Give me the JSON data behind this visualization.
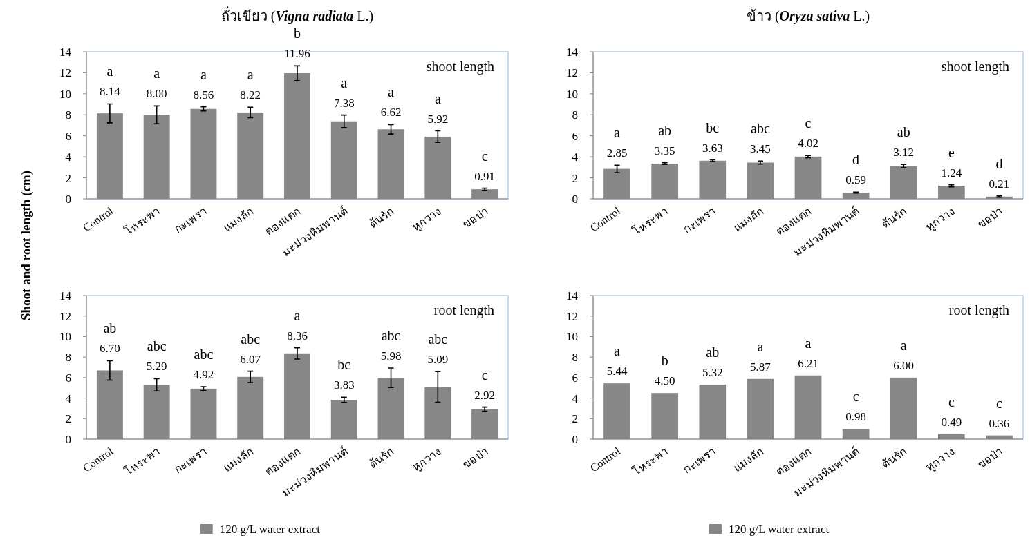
{
  "chart_data": [
    {
      "type": "bar",
      "title": "ถั่วเขียว (*Vigna radiata* L.)",
      "ylabel": "Shoot  and root length (cm)",
      "categories": [
        "Control",
        "โหระพา",
        "กะเพรา",
        "แมงลัก",
        "ตองแตก",
        "มะม่วงหิมพานต์",
        "ต้นรัก",
        "หูกวาง",
        "ขอป่า"
      ],
      "ylim": [
        0,
        14
      ],
      "yticks": [
        0,
        2,
        4,
        6,
        8,
        10,
        12,
        14
      ],
      "series": [
        {
          "color": "#878787",
          "values": [
            8.14,
            8.0,
            8.56,
            8.22,
            11.96,
            7.38,
            6.62,
            5.92,
            0.91
          ],
          "errors": [
            0.9,
            0.85,
            0.2,
            0.5,
            0.7,
            0.6,
            0.45,
            0.55,
            0.1
          ],
          "value_labels": [
            "8.14",
            "8.00",
            "8.56",
            "8.22",
            "11.96",
            "7.38",
            "6.62",
            "5.92",
            "0.91"
          ]
        }
      ],
      "annotations": [
        "shoot length",
        "a",
        "a",
        "a",
        "a",
        "b",
        "a",
        "a",
        "a",
        "c"
      ]
    },
    {
      "type": "bar",
      "title": "ข้าว  (*Oryza sativa* L.)",
      "categories": [
        "Control",
        "โหระพา",
        "กะเพรา",
        "แมงลัก",
        "ตองแตก",
        "มะม่วงหิมพานต์",
        "ต้นรัก",
        "หูกวาง",
        "ขอป่า"
      ],
      "ylim": [
        0,
        14
      ],
      "yticks": [
        0,
        2,
        4,
        6,
        8,
        10,
        12,
        14
      ],
      "series": [
        {
          "color": "#878787",
          "values": [
            2.85,
            3.35,
            3.63,
            3.45,
            4.02,
            0.59,
            3.12,
            1.24,
            0.21
          ],
          "errors": [
            0.35,
            0.08,
            0.08,
            0.15,
            0.1,
            0.04,
            0.15,
            0.1,
            0.06
          ],
          "value_labels": [
            "2.85",
            "3.35",
            "3.63",
            "3.45",
            "4.02",
            "0.59",
            "3.12",
            "1.24",
            "0.21"
          ]
        }
      ],
      "annotations": [
        "shoot length",
        "a",
        "ab",
        "bc",
        "abc",
        "c",
        "d",
        "ab",
        "e",
        "d"
      ]
    },
    {
      "type": "bar",
      "categories": [
        "Control",
        "โหระพา",
        "กะเพรา",
        "แมงลัก",
        "ตองแตก",
        "มะม่วงหิมพานต์",
        "ต้นรัก",
        "หูกวาง",
        "ขอป่า"
      ],
      "ylim": [
        0,
        14
      ],
      "yticks": [
        0,
        2,
        4,
        6,
        8,
        10,
        12,
        14
      ],
      "legend": "bottom",
      "series": [
        {
          "name": "120 g/L  water extract",
          "color": "#878787",
          "values": [
            6.7,
            5.29,
            4.92,
            6.07,
            8.36,
            3.83,
            5.98,
            5.09,
            2.92
          ],
          "errors": [
            0.95,
            0.6,
            0.2,
            0.55,
            0.55,
            0.25,
            0.95,
            1.5,
            0.2
          ],
          "value_labels": [
            "6.70",
            "5.29",
            "4.92",
            "6.07",
            "8.36",
            "3.83",
            "5.98",
            "5.09",
            "2.92"
          ]
        }
      ],
      "annotations": [
        "root length",
        "ab",
        "abc",
        "abc",
        "abc",
        "a",
        "bc",
        "abc",
        "abc",
        "c"
      ]
    },
    {
      "type": "bar",
      "categories": [
        "Control",
        "โหระพา",
        "กะเพรา",
        "แมงลัก",
        "ตองแตก",
        "มะม่วงหิมพานต์",
        "ต้นรัก",
        "หูกวาง",
        "ขอป่า"
      ],
      "ylim": [
        0,
        14
      ],
      "yticks": [
        0,
        2,
        4,
        6,
        8,
        10,
        12,
        14
      ],
      "legend": "bottom",
      "series": [
        {
          "name": "120 g/L  water extract",
          "color": "#878787",
          "values": [
            5.44,
            4.5,
            5.32,
            5.87,
            6.21,
            0.98,
            6.0,
            0.49,
            0.36
          ],
          "value_labels": [
            "5.44",
            "4.50",
            "5.32",
            "5.87",
            "6.21",
            "0.98",
            "6.00",
            "0.49",
            "0.36"
          ]
        }
      ],
      "annotations": [
        "root length",
        "a",
        "b",
        "ab",
        "a",
        "a",
        "c",
        "a",
        "c",
        "c"
      ]
    }
  ]
}
